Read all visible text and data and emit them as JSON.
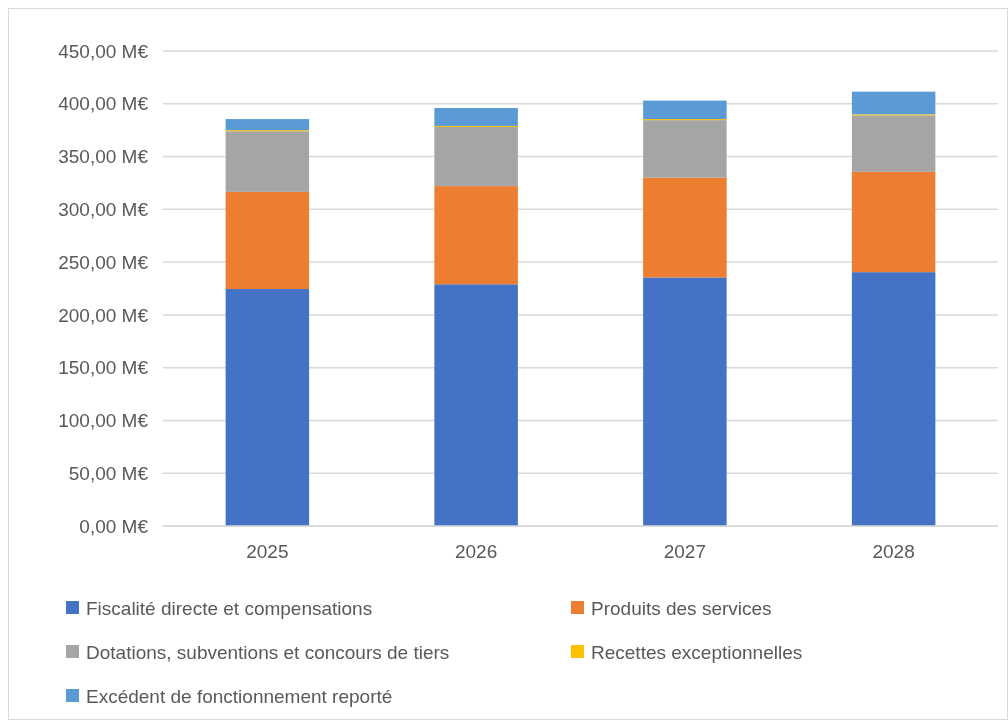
{
  "chart_data": {
    "type": "bar",
    "stacked": true,
    "categories": [
      "2025",
      "2026",
      "2027",
      "2028"
    ],
    "series": [
      {
        "name": "Fiscalité directe et compensations",
        "color": "#4472c4",
        "values": [
          224.5,
          229,
          235.5,
          240.5
        ]
      },
      {
        "name": "Produits des services",
        "color": "#ed7d31",
        "values": [
          92,
          93,
          94.5,
          95
        ]
      },
      {
        "name": "Dotations, subventions et concours de tiers",
        "color": "#a5a5a5",
        "values": [
          57.5,
          56,
          54.5,
          53.5
        ]
      },
      {
        "name": "Recettes exceptionnelles",
        "color": "#ffc000",
        "values": [
          1,
          1,
          1,
          1
        ]
      },
      {
        "name": "Excédent de fonctionnement reporté",
        "color": "#5b9bd5",
        "values": [
          10.5,
          17,
          17.5,
          21.5
        ]
      }
    ],
    "ylim": [
      0,
      450
    ],
    "yticks": [
      {
        "value": 0,
        "label": "0,00 M€"
      },
      {
        "value": 50,
        "label": "50,00 M€"
      },
      {
        "value": 100,
        "label": "100,00 M€"
      },
      {
        "value": 150,
        "label": "150,00 M€"
      },
      {
        "value": 200,
        "label": "200,00 M€"
      },
      {
        "value": 250,
        "label": "250,00 M€"
      },
      {
        "value": 300,
        "label": "300,00 M€"
      },
      {
        "value": 350,
        "label": "350,00 M€"
      },
      {
        "value": 400,
        "label": "400,00 M€"
      },
      {
        "value": 450,
        "label": "450,00 M€"
      }
    ],
    "grid": "y",
    "legend": "bottom"
  }
}
